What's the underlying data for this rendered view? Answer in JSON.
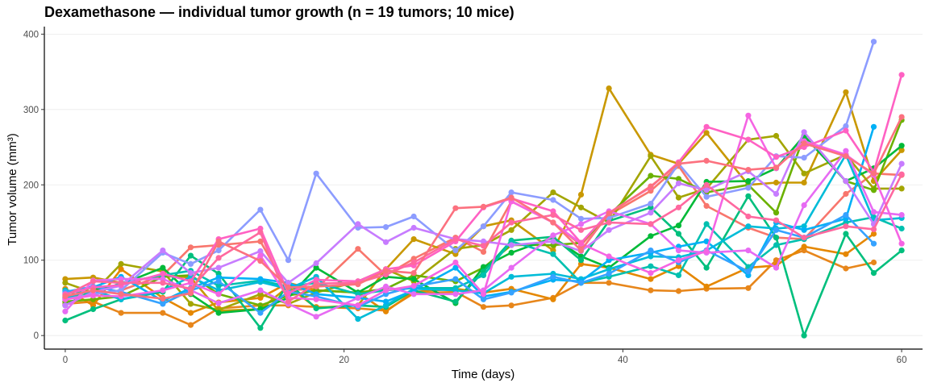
{
  "chart_data": {
    "type": "line",
    "title": "Dexamethasone — individual tumor growth (n = 19 tumors; 10 mice)",
    "xlabel": "Time (days)",
    "ylabel": "Tumor volume (mm³)",
    "xlim": [
      -1.5,
      61.5
    ],
    "ylim": [
      -18,
      410
    ],
    "x_ticks": [
      0,
      20,
      40,
      60
    ],
    "y_ticks": [
      0,
      100,
      200,
      300,
      400
    ],
    "grid": "horizontal",
    "legend": "none",
    "x": [
      0,
      2,
      4,
      7,
      9,
      11,
      14,
      16,
      18,
      21,
      23,
      25,
      28,
      30,
      32,
      35,
      37,
      39,
      42,
      44,
      46,
      49,
      51,
      53,
      56,
      58,
      60
    ],
    "series": [
      {
        "color": "#F8766D",
        "values": [
          50,
          55,
          60,
          80,
          117,
          120,
          125,
          60,
          62,
          115,
          80,
          102,
          130,
          111,
          178,
          150,
          120,
          160,
          192,
          225,
          172,
          143,
          130,
          128,
          188,
          215,
          213
        ]
      },
      {
        "color": "#E7861B",
        "values": [
          42,
          45,
          30,
          30,
          14,
          36,
          40,
          40,
          38,
          36,
          33,
          56,
          58,
          38,
          40,
          50,
          70,
          70,
          60,
          59,
          62,
          63,
          100,
          113,
          89,
          97,
          null
        ]
      },
      {
        "color": "#E58700",
        "values": [
          62,
          40,
          88,
          50,
          30,
          44,
          50,
          70,
          60,
          57,
          32,
          58,
          62,
          57,
          62,
          48,
          95,
          90,
          75,
          92,
          65,
          90,
          93,
          118,
          108,
          135,
          null
        ]
      },
      {
        "color": "#C99800",
        "values": [
          75,
          77,
          70,
          80,
          77,
          33,
          35,
          65,
          37,
          40,
          88,
          128,
          108,
          145,
          153,
          113,
          187,
          328,
          240,
          228,
          269,
          200,
          203,
          203,
          323,
          205,
          246
        ]
      },
      {
        "color": "#A3A500",
        "values": [
          70,
          57,
          95,
          85,
          42,
          34,
          55,
          42,
          57,
          72,
          88,
          72,
          115,
          120,
          140,
          190,
          170,
          150,
          238,
          183,
          195,
          260,
          265,
          215,
          240,
          195,
          195
        ]
      },
      {
        "color": "#6BB100",
        "values": [
          45,
          48,
          52,
          78,
          80,
          55,
          40,
          53,
          60,
          57,
          62,
          80,
          72,
          90,
          120,
          120,
          123,
          160,
          212,
          208,
          190,
          200,
          163,
          265,
          205,
          193,
          286
        ]
      },
      {
        "color": "#00BA38",
        "values": [
          40,
          60,
          68,
          90,
          55,
          30,
          35,
          50,
          90,
          57,
          78,
          75,
          43,
          91,
          110,
          130,
          105,
          90,
          132,
          146,
          204,
          205,
          222,
          265,
          205,
          222,
          252
        ]
      },
      {
        "color": "#00BF7D",
        "values": [
          20,
          35,
          48,
          58,
          106,
          82,
          10,
          70,
          36,
          40,
          38,
          60,
          45,
          85,
          126,
          131,
          100,
          152,
          170,
          135,
          90,
          185,
          130,
          0,
          135,
          83,
          113
        ]
      },
      {
        "color": "#00C0AF",
        "values": [
          60,
          55,
          70,
          80,
          86,
          66,
          73,
          65,
          70,
          55,
          60,
          63,
          63,
          80,
          125,
          108,
          70,
          78,
          92,
          80,
          148,
          91,
          120,
          128,
          150,
          157,
          142
        ]
      },
      {
        "color": "#00BCD8",
        "values": [
          50,
          60,
          48,
          60,
          78,
          60,
          71,
          62,
          78,
          22,
          40,
          62,
          60,
          56,
          78,
          82,
          75,
          88,
          105,
          104,
          113,
          145,
          142,
          145,
          240,
          153,
          156
        ]
      },
      {
        "color": "#00B0F6",
        "values": [
          55,
          64,
          78,
          46,
          63,
          77,
          75,
          70,
          55,
          50,
          45,
          60,
          90,
          52,
          58,
          74,
          72,
          100,
          110,
          118,
          125,
          80,
          150,
          140,
          155,
          277,
          null
        ]
      },
      {
        "color": "#35A2FF",
        "values": [
          58,
          65,
          58,
          42,
          60,
          72,
          30,
          58,
          52,
          38,
          55,
          65,
          75,
          48,
          57,
          78,
          70,
          82,
          113,
          97,
          113,
          85,
          140,
          130,
          160,
          122,
          null
        ]
      },
      {
        "color": "#8C9CFF",
        "values": [
          48,
          55,
          60,
          110,
          95,
          113,
          167,
          100,
          215,
          143,
          144,
          158,
          113,
          145,
          190,
          180,
          155,
          156,
          175,
          228,
          184,
          196,
          238,
          236,
          278,
          390,
          null
        ]
      },
      {
        "color": "#C77CFF",
        "values": [
          40,
          58,
          66,
          113,
          83,
          90,
          112,
          70,
          96,
          148,
          124,
          143,
          128,
          125,
          120,
          125,
          112,
          140,
          163,
          202,
          193,
          218,
          188,
          270,
          205,
          148,
          228
        ]
      },
      {
        "color": "#E76BF3",
        "values": [
          32,
          73,
          75,
          75,
          60,
          43,
          60,
          42,
          25,
          50,
          65,
          55,
          55,
          60,
          90,
          133,
          148,
          165,
          148,
          113,
          110,
          113,
          90,
          173,
          245,
          164,
          160
        ]
      },
      {
        "color": "#F564E3",
        "values": [
          48,
          53,
          52,
          60,
          70,
          55,
          106,
          50,
          48,
          40,
          60,
          66,
          97,
          55,
          178,
          150,
          122,
          105,
          83,
          100,
          112,
          292,
          222,
          258,
          240,
          213,
          122
        ]
      },
      {
        "color": "#FF61C3",
        "values": [
          55,
          64,
          67,
          82,
          72,
          128,
          142,
          56,
          74,
          72,
          88,
          93,
          125,
          170,
          182,
          165,
          123,
          163,
          197,
          230,
          277,
          260,
          237,
          250,
          272,
          217,
          346
        ]
      },
      {
        "color": "#FF689F",
        "values": [
          53,
          72,
          70,
          70,
          62,
          103,
          137,
          45,
          69,
          70,
          81,
          97,
          128,
          119,
          150,
          160,
          140,
          150,
          148,
          170,
          200,
          158,
          153,
          130,
          145,
          141,
          214
        ]
      },
      {
        "color": "#FC717F",
        "values": [
          52,
          60,
          55,
          49,
          56,
          125,
          99,
          64,
          65,
          68,
          86,
          83,
          169,
          171,
          183,
          150,
          113,
          162,
          198,
          228,
          232,
          220,
          223,
          255,
          238,
          215,
          290
        ]
      }
    ]
  }
}
